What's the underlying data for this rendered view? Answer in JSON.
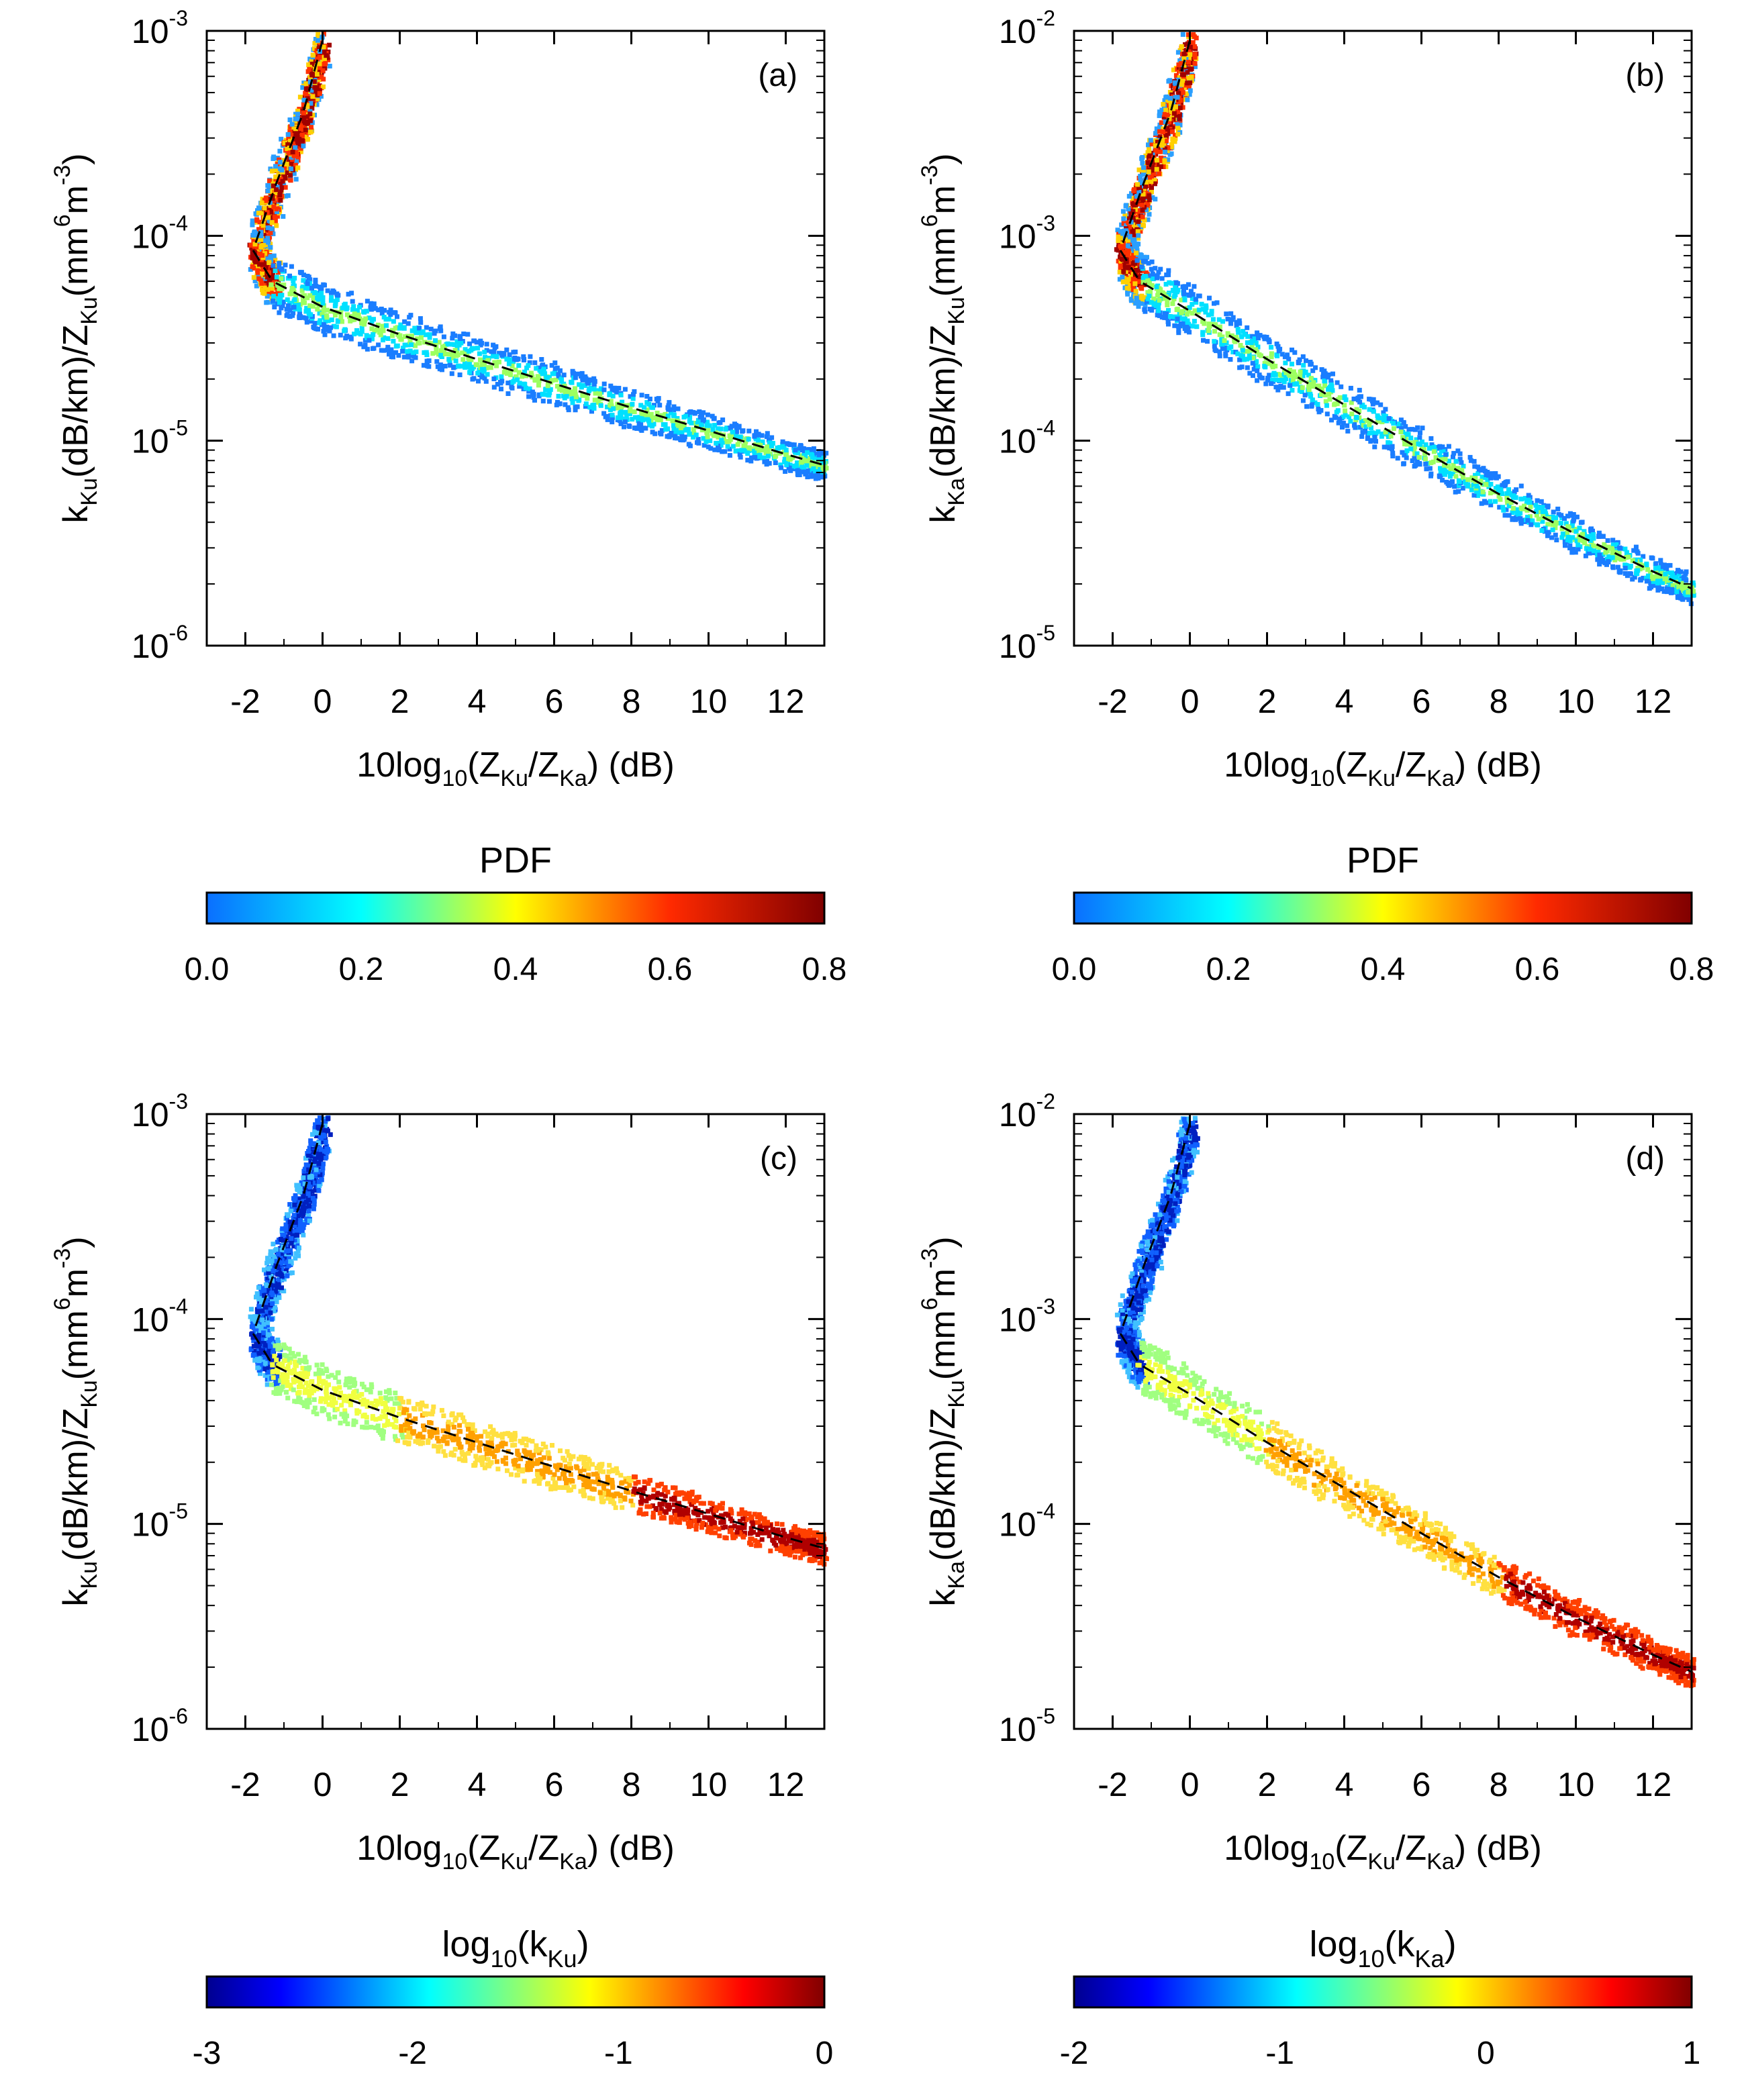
{
  "chart_data": [
    {
      "panel": "a",
      "type": "heatmap",
      "title": "",
      "label": "(a)",
      "xlabel": {
        "prefix": "10log",
        "sub1": "10",
        "mid1": "(Z",
        "sub2": "Ku",
        "mid2": "/Z",
        "sub3": "Ka",
        "suffix": ") (dB)"
      },
      "ylabel": {
        "k": "k",
        "ksub": "Ku",
        "a": "(dB/km)/Z",
        "zsub": "Ku",
        "b": "(mm",
        "sup1": "6",
        "c": "m",
        "sup2": "-3",
        "d": ")"
      },
      "xlim": [
        -3,
        13
      ],
      "xticks": [
        "-2",
        "0",
        "2",
        "4",
        "6",
        "8",
        "10",
        "12"
      ],
      "xtick_values": [
        -2,
        0,
        2,
        4,
        6,
        8,
        10,
        12
      ],
      "yscale": "log",
      "ylim": [
        1e-06,
        0.001
      ],
      "yticks": [
        {
          "base": "10",
          "exp": "-6",
          "value": -6
        },
        {
          "base": "10",
          "exp": "-5",
          "value": -5
        },
        {
          "base": "10",
          "exp": "-4",
          "value": -4
        },
        {
          "base": "10",
          "exp": "-3",
          "value": -3
        }
      ],
      "fit_line": {
        "style": "dashed",
        "x": [
          0.0,
          -0.5,
          -1.2,
          -1.8,
          -1.3,
          0,
          2,
          4,
          6,
          8,
          10,
          12,
          13
        ],
        "y": [
          0.0009,
          0.0004,
          0.00018,
          8.5e-05,
          6e-05,
          4.5e-05,
          3.3e-05,
          2.5e-05,
          1.9e-05,
          1.45e-05,
          1.12e-05,
          8.6e-06,
          7.6e-06
        ]
      },
      "colorbar": {
        "label": "PDF",
        "ticks": [
          "0.0",
          "0.2",
          "0.4",
          "0.6",
          "0.8"
        ],
        "range": [
          0.0,
          0.8
        ]
      }
    },
    {
      "panel": "b",
      "type": "heatmap",
      "title": "",
      "label": "(b)",
      "xlabel": {
        "prefix": "10log",
        "sub1": "10",
        "mid1": "(Z",
        "sub2": "Ku",
        "mid2": "/Z",
        "sub3": "Ka",
        "suffix": ") (dB)"
      },
      "ylabel": {
        "k": "k",
        "ksub": "Ka",
        "a": "(dB/km)/Z",
        "zsub": "Ku",
        "b": "(mm",
        "sup1": "6",
        "c": "m",
        "sup2": "-3",
        "d": ")"
      },
      "xlim": [
        -3,
        13
      ],
      "xticks": [
        "-2",
        "0",
        "2",
        "4",
        "6",
        "8",
        "10",
        "12"
      ],
      "xtick_values": [
        -2,
        0,
        2,
        4,
        6,
        8,
        10,
        12
      ],
      "yscale": "log",
      "ylim": [
        1e-05,
        0.01
      ],
      "yticks": [
        {
          "base": "10",
          "exp": "-5",
          "value": -5
        },
        {
          "base": "10",
          "exp": "-4",
          "value": -4
        },
        {
          "base": "10",
          "exp": "-3",
          "value": -3
        },
        {
          "base": "10",
          "exp": "-2",
          "value": -2
        }
      ],
      "fit_line": {
        "style": "dashed",
        "x": [
          0.0,
          -0.5,
          -1.2,
          -1.8,
          -1.3,
          0,
          2,
          4,
          6,
          8,
          10,
          12,
          13
        ],
        "y": [
          0.009,
          0.004,
          0.0018,
          0.00085,
          0.0006,
          0.00043,
          0.00025,
          0.00015,
          9e-05,
          5.5e-05,
          3.5e-05,
          2.3e-05,
          1.9e-05
        ]
      },
      "colorbar": {
        "label": "PDF",
        "ticks": [
          "0.0",
          "0.2",
          "0.4",
          "0.6",
          "0.8"
        ],
        "range": [
          0.0,
          0.8
        ]
      }
    },
    {
      "panel": "c",
      "type": "heatmap",
      "title": "",
      "label": "(c)",
      "xlabel": {
        "prefix": "10log",
        "sub1": "10",
        "mid1": "(Z",
        "sub2": "Ku",
        "mid2": "/Z",
        "sub3": "Ka",
        "suffix": ") (dB)"
      },
      "ylabel": {
        "k": "k",
        "ksub": "Ku",
        "a": "(dB/km)/Z",
        "zsub": "Ku",
        "b": "(mm",
        "sup1": "6",
        "c": "m",
        "sup2": "-3",
        "d": ")"
      },
      "xlim": [
        -3,
        13
      ],
      "xticks": [
        "-2",
        "0",
        "2",
        "4",
        "6",
        "8",
        "10",
        "12"
      ],
      "xtick_values": [
        -2,
        0,
        2,
        4,
        6,
        8,
        10,
        12
      ],
      "yscale": "log",
      "ylim": [
        1e-06,
        0.001
      ],
      "yticks": [
        {
          "base": "10",
          "exp": "-6",
          "value": -6
        },
        {
          "base": "10",
          "exp": "-5",
          "value": -5
        },
        {
          "base": "10",
          "exp": "-4",
          "value": -4
        },
        {
          "base": "10",
          "exp": "-3",
          "value": -3
        }
      ],
      "fit_line": {
        "style": "dashed",
        "x": [
          0.0,
          -0.5,
          -1.2,
          -1.8,
          -1.3,
          0,
          2,
          4,
          6,
          8,
          10,
          12,
          13
        ],
        "y": [
          0.0009,
          0.0004,
          0.00018,
          8.5e-05,
          6e-05,
          4.5e-05,
          3.3e-05,
          2.5e-05,
          1.9e-05,
          1.45e-05,
          1.12e-05,
          8.6e-06,
          7.6e-06
        ]
      },
      "colorbar": {
        "label_base": "log",
        "label_sub": "10",
        "label_open": "(k",
        "label_sub2": "Ku",
        "label_close": ")",
        "ticks": [
          "-3",
          "-2",
          "-1",
          "0"
        ],
        "range": [
          -3,
          0
        ]
      }
    },
    {
      "panel": "d",
      "type": "heatmap",
      "title": "",
      "label": "(d)",
      "xlabel": {
        "prefix": "10log",
        "sub1": "10",
        "mid1": "(Z",
        "sub2": "Ku",
        "mid2": "/Z",
        "sub3": "Ka",
        "suffix": ") (dB)"
      },
      "ylabel": {
        "k": "k",
        "ksub": "Ka",
        "a": "(dB/km)/Z",
        "zsub": "Ku",
        "b": "(mm",
        "sup1": "6",
        "c": "m",
        "sup2": "-3",
        "d": ")"
      },
      "xlim": [
        -3,
        13
      ],
      "xticks": [
        "-2",
        "0",
        "2",
        "4",
        "6",
        "8",
        "10",
        "12"
      ],
      "xtick_values": [
        -2,
        0,
        2,
        4,
        6,
        8,
        10,
        12
      ],
      "yscale": "log",
      "ylim": [
        1e-05,
        0.01
      ],
      "yticks": [
        {
          "base": "10",
          "exp": "-5",
          "value": -5
        },
        {
          "base": "10",
          "exp": "-4",
          "value": -4
        },
        {
          "base": "10",
          "exp": "-3",
          "value": -3
        },
        {
          "base": "10",
          "exp": "-2",
          "value": -2
        }
      ],
      "fit_line": {
        "style": "dashed",
        "x": [
          0.0,
          -0.5,
          -1.2,
          -1.8,
          -1.3,
          0,
          2,
          4,
          6,
          8,
          10,
          12,
          13
        ],
        "y": [
          0.009,
          0.004,
          0.0018,
          0.00085,
          0.0006,
          0.00043,
          0.00025,
          0.00015,
          9e-05,
          5.5e-05,
          3.5e-05,
          2.3e-05,
          1.9e-05
        ]
      },
      "colorbar": {
        "label_base": "log",
        "label_sub": "10",
        "label_open": "(k",
        "label_sub2": "Ka",
        "label_close": ")",
        "ticks": [
          "-2",
          "-1",
          "0",
          "1"
        ],
        "range": [
          -2,
          1
        ]
      }
    }
  ]
}
